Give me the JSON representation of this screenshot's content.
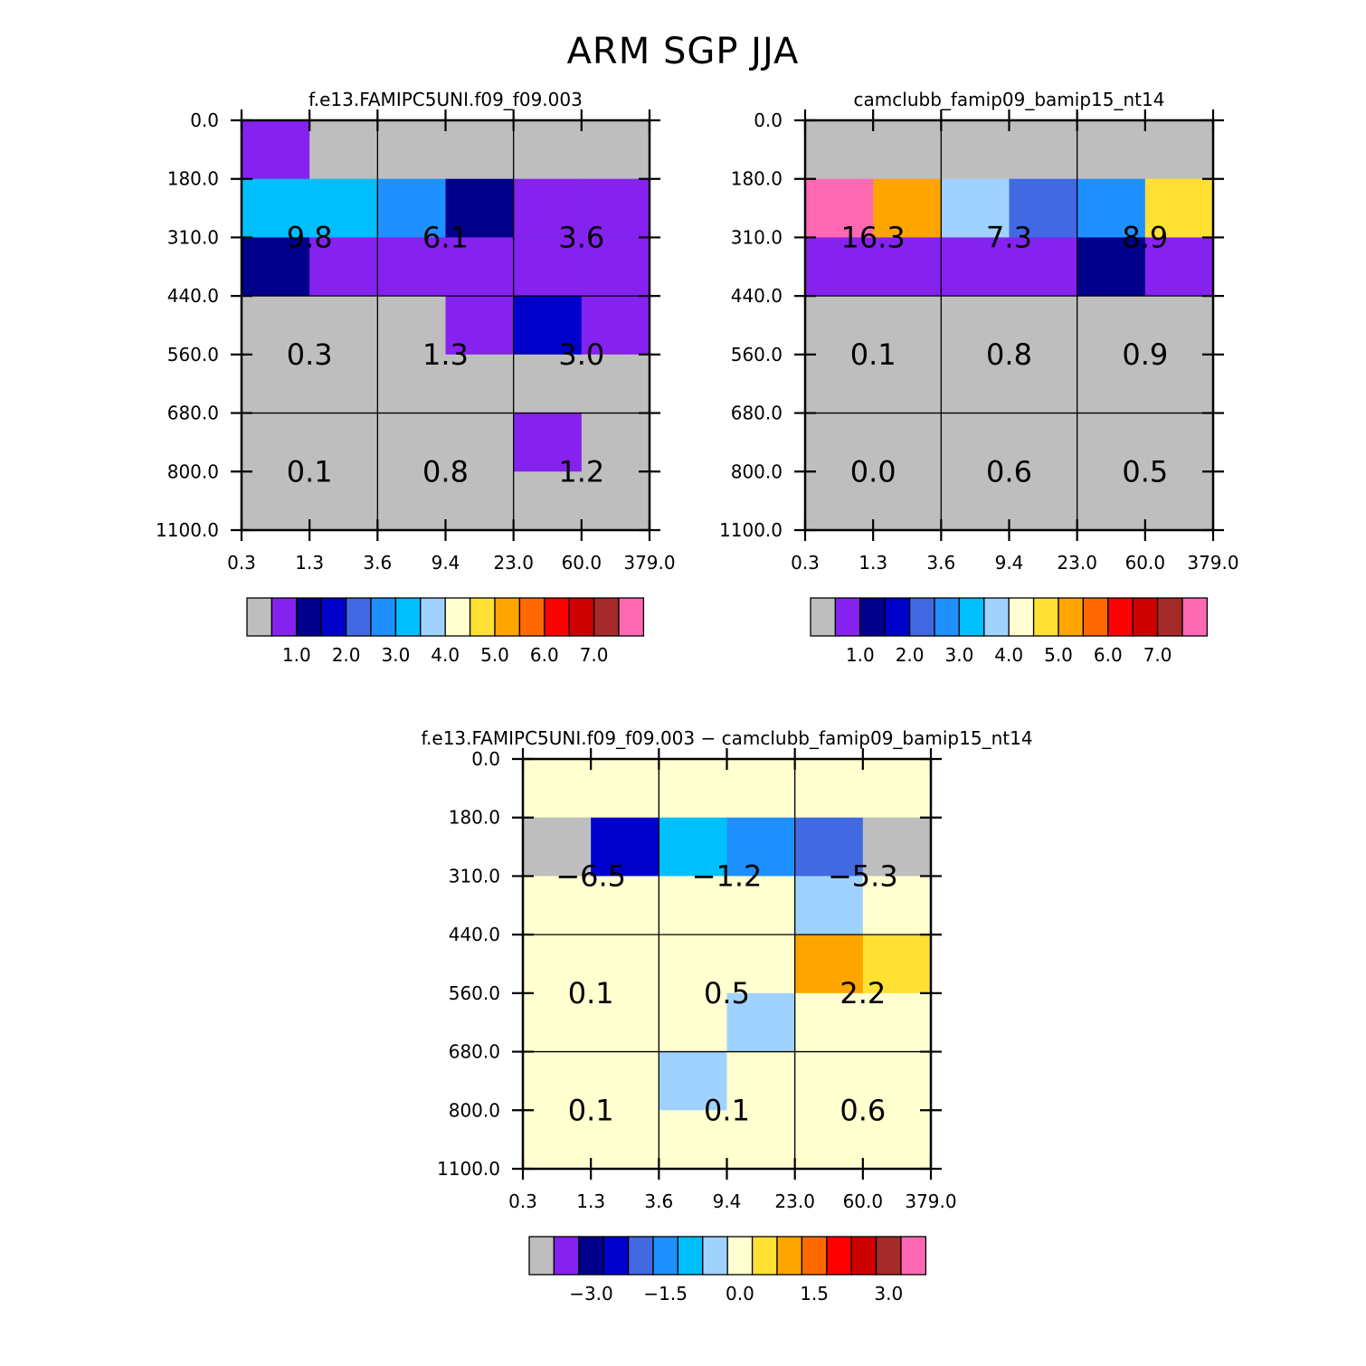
{
  "title": "ARM  SGP  JJA",
  "chart_data": [
    {
      "type": "heatmap",
      "title": "f.e13.FAMIPC5UNI.f09_f09.003",
      "xlabel": "",
      "ylabel": "",
      "x_ticks": [
        "0.3",
        "1.3",
        "3.6",
        "9.4",
        "23.0",
        "60.0",
        "379.0"
      ],
      "y_ticks": [
        "0.0",
        "180.0",
        "310.0",
        "440.0",
        "560.0",
        "680.0",
        "800.0",
        "1100.0"
      ],
      "grid_rows": 7,
      "grid_cols": 6,
      "cells": [
        [
          "#8522f0",
          "#bebebe",
          "#bebebe",
          "#bebebe",
          "#bebebe",
          "#bebebe"
        ],
        [
          "#00bfff",
          "#00bfff",
          "#1e90ff",
          "#00008b",
          "#8522f0",
          "#8522f0"
        ],
        [
          "#00008b",
          "#8522f0",
          "#8522f0",
          "#8522f0",
          "#8522f0",
          "#8522f0"
        ],
        [
          "#bebebe",
          "#bebebe",
          "#bebebe",
          "#8522f0",
          "#0000cd",
          "#8522f0"
        ],
        [
          "#bebebe",
          "#bebebe",
          "#bebebe",
          "#bebebe",
          "#bebebe",
          "#bebebe"
        ],
        [
          "#bebebe",
          "#bebebe",
          "#bebebe",
          "#bebebe",
          "#8522f0",
          "#bebebe"
        ],
        [
          "#bebebe",
          "#bebebe",
          "#bebebe",
          "#bebebe",
          "#bebebe",
          "#bebebe"
        ]
      ],
      "box_values": [
        [
          "9.8",
          "6.1",
          "3.6"
        ],
        [
          "0.3",
          "1.3",
          "3.0"
        ],
        [
          "0.1",
          "0.8",
          "1.2"
        ]
      ],
      "colorbar": {
        "colors": [
          "#bebebe",
          "#8522f0",
          "#00008b",
          "#0000cd",
          "#4169e1",
          "#1e90ff",
          "#00bfff",
          "#a0d2ff",
          "#ffffd0",
          "#ffe033",
          "#ffa500",
          "#ff6a00",
          "#ff0000",
          "#cd0000",
          "#a52a2a",
          "#ff69b4"
        ],
        "labels": [
          "1.0",
          "2.0",
          "3.0",
          "4.0",
          "5.0",
          "6.0",
          "7.0"
        ],
        "label_boundaries": [
          2,
          4,
          6,
          8,
          10,
          12,
          14
        ]
      }
    },
    {
      "type": "heatmap",
      "title": "camclubb_famip09_bamip15_nt14",
      "xlabel": "",
      "ylabel": "",
      "x_ticks": [
        "0.3",
        "1.3",
        "3.6",
        "9.4",
        "23.0",
        "60.0",
        "379.0"
      ],
      "y_ticks": [
        "0.0",
        "180.0",
        "310.0",
        "440.0",
        "560.0",
        "680.0",
        "800.0",
        "1100.0"
      ],
      "grid_rows": 7,
      "grid_cols": 6,
      "cells": [
        [
          "#bebebe",
          "#bebebe",
          "#bebebe",
          "#bebebe",
          "#bebebe",
          "#bebebe"
        ],
        [
          "#ff69b4",
          "#ffa500",
          "#a0d2ff",
          "#4169e1",
          "#1e90ff",
          "#ffe033"
        ],
        [
          "#8522f0",
          "#8522f0",
          "#8522f0",
          "#8522f0",
          "#00008b",
          "#8522f0"
        ],
        [
          "#bebebe",
          "#bebebe",
          "#bebebe",
          "#bebebe",
          "#bebebe",
          "#bebebe"
        ],
        [
          "#bebebe",
          "#bebebe",
          "#bebebe",
          "#bebebe",
          "#bebebe",
          "#bebebe"
        ],
        [
          "#bebebe",
          "#bebebe",
          "#bebebe",
          "#bebebe",
          "#bebebe",
          "#bebebe"
        ],
        [
          "#bebebe",
          "#bebebe",
          "#bebebe",
          "#bebebe",
          "#bebebe",
          "#bebebe"
        ]
      ],
      "box_values": [
        [
          "16.3",
          "7.3",
          "8.9"
        ],
        [
          "0.1",
          "0.8",
          "0.9"
        ],
        [
          "0.0",
          "0.6",
          "0.5"
        ]
      ],
      "colorbar": {
        "colors": [
          "#bebebe",
          "#8522f0",
          "#00008b",
          "#0000cd",
          "#4169e1",
          "#1e90ff",
          "#00bfff",
          "#a0d2ff",
          "#ffffd0",
          "#ffe033",
          "#ffa500",
          "#ff6a00",
          "#ff0000",
          "#cd0000",
          "#a52a2a",
          "#ff69b4"
        ],
        "labels": [
          "1.0",
          "2.0",
          "3.0",
          "4.0",
          "5.0",
          "6.0",
          "7.0"
        ],
        "label_boundaries": [
          2,
          4,
          6,
          8,
          10,
          12,
          14
        ]
      }
    },
    {
      "type": "heatmap",
      "title": "f.e13.FAMIPC5UNI.f09_f09.003 − camclubb_famip09_bamip15_nt14",
      "xlabel": "",
      "ylabel": "",
      "x_ticks": [
        "0.3",
        "1.3",
        "3.6",
        "9.4",
        "23.0",
        "60.0",
        "379.0"
      ],
      "y_ticks": [
        "0.0",
        "180.0",
        "310.0",
        "440.0",
        "560.0",
        "680.0",
        "800.0",
        "1100.0"
      ],
      "grid_rows": 7,
      "grid_cols": 6,
      "cells": [
        [
          "#ffffd0",
          "#ffffd0",
          "#ffffd0",
          "#ffffd0",
          "#ffffd0",
          "#ffffd0"
        ],
        [
          "#bebebe",
          "#0000cd",
          "#00bfff",
          "#1e90ff",
          "#4169e1",
          "#bebebe"
        ],
        [
          "#ffffd0",
          "#ffffd0",
          "#ffffd0",
          "#ffffd0",
          "#a0d2ff",
          "#ffffd0"
        ],
        [
          "#ffffd0",
          "#ffffd0",
          "#ffffd0",
          "#ffffd0",
          "#ffa500",
          "#ffe033"
        ],
        [
          "#ffffd0",
          "#ffffd0",
          "#ffffd0",
          "#a0d2ff",
          "#ffffd0",
          "#ffffd0"
        ],
        [
          "#ffffd0",
          "#ffffd0",
          "#a0d2ff",
          "#ffffd0",
          "#ffffd0",
          "#ffffd0"
        ],
        [
          "#ffffd0",
          "#ffffd0",
          "#ffffd0",
          "#ffffd0",
          "#ffffd0",
          "#ffffd0"
        ]
      ],
      "box_values": [
        [
          "−6.5",
          "−1.2",
          "−5.3"
        ],
        [
          "0.1",
          "0.5",
          "2.2"
        ],
        [
          "0.1",
          "0.1",
          "0.6"
        ]
      ],
      "colorbar": {
        "colors": [
          "#bebebe",
          "#8522f0",
          "#00008b",
          "#0000cd",
          "#4169e1",
          "#1e90ff",
          "#00bfff",
          "#a0d2ff",
          "#ffffd0",
          "#ffe033",
          "#ffa500",
          "#ff6a00",
          "#ff0000",
          "#cd0000",
          "#a52a2a",
          "#ff69b4"
        ],
        "labels": [
          "−3.0",
          "−1.5",
          "0.0",
          "1.5",
          "3.0"
        ],
        "label_boundaries": [
          2.5,
          5.5,
          8.5,
          11.5,
          14.5
        ]
      }
    }
  ]
}
